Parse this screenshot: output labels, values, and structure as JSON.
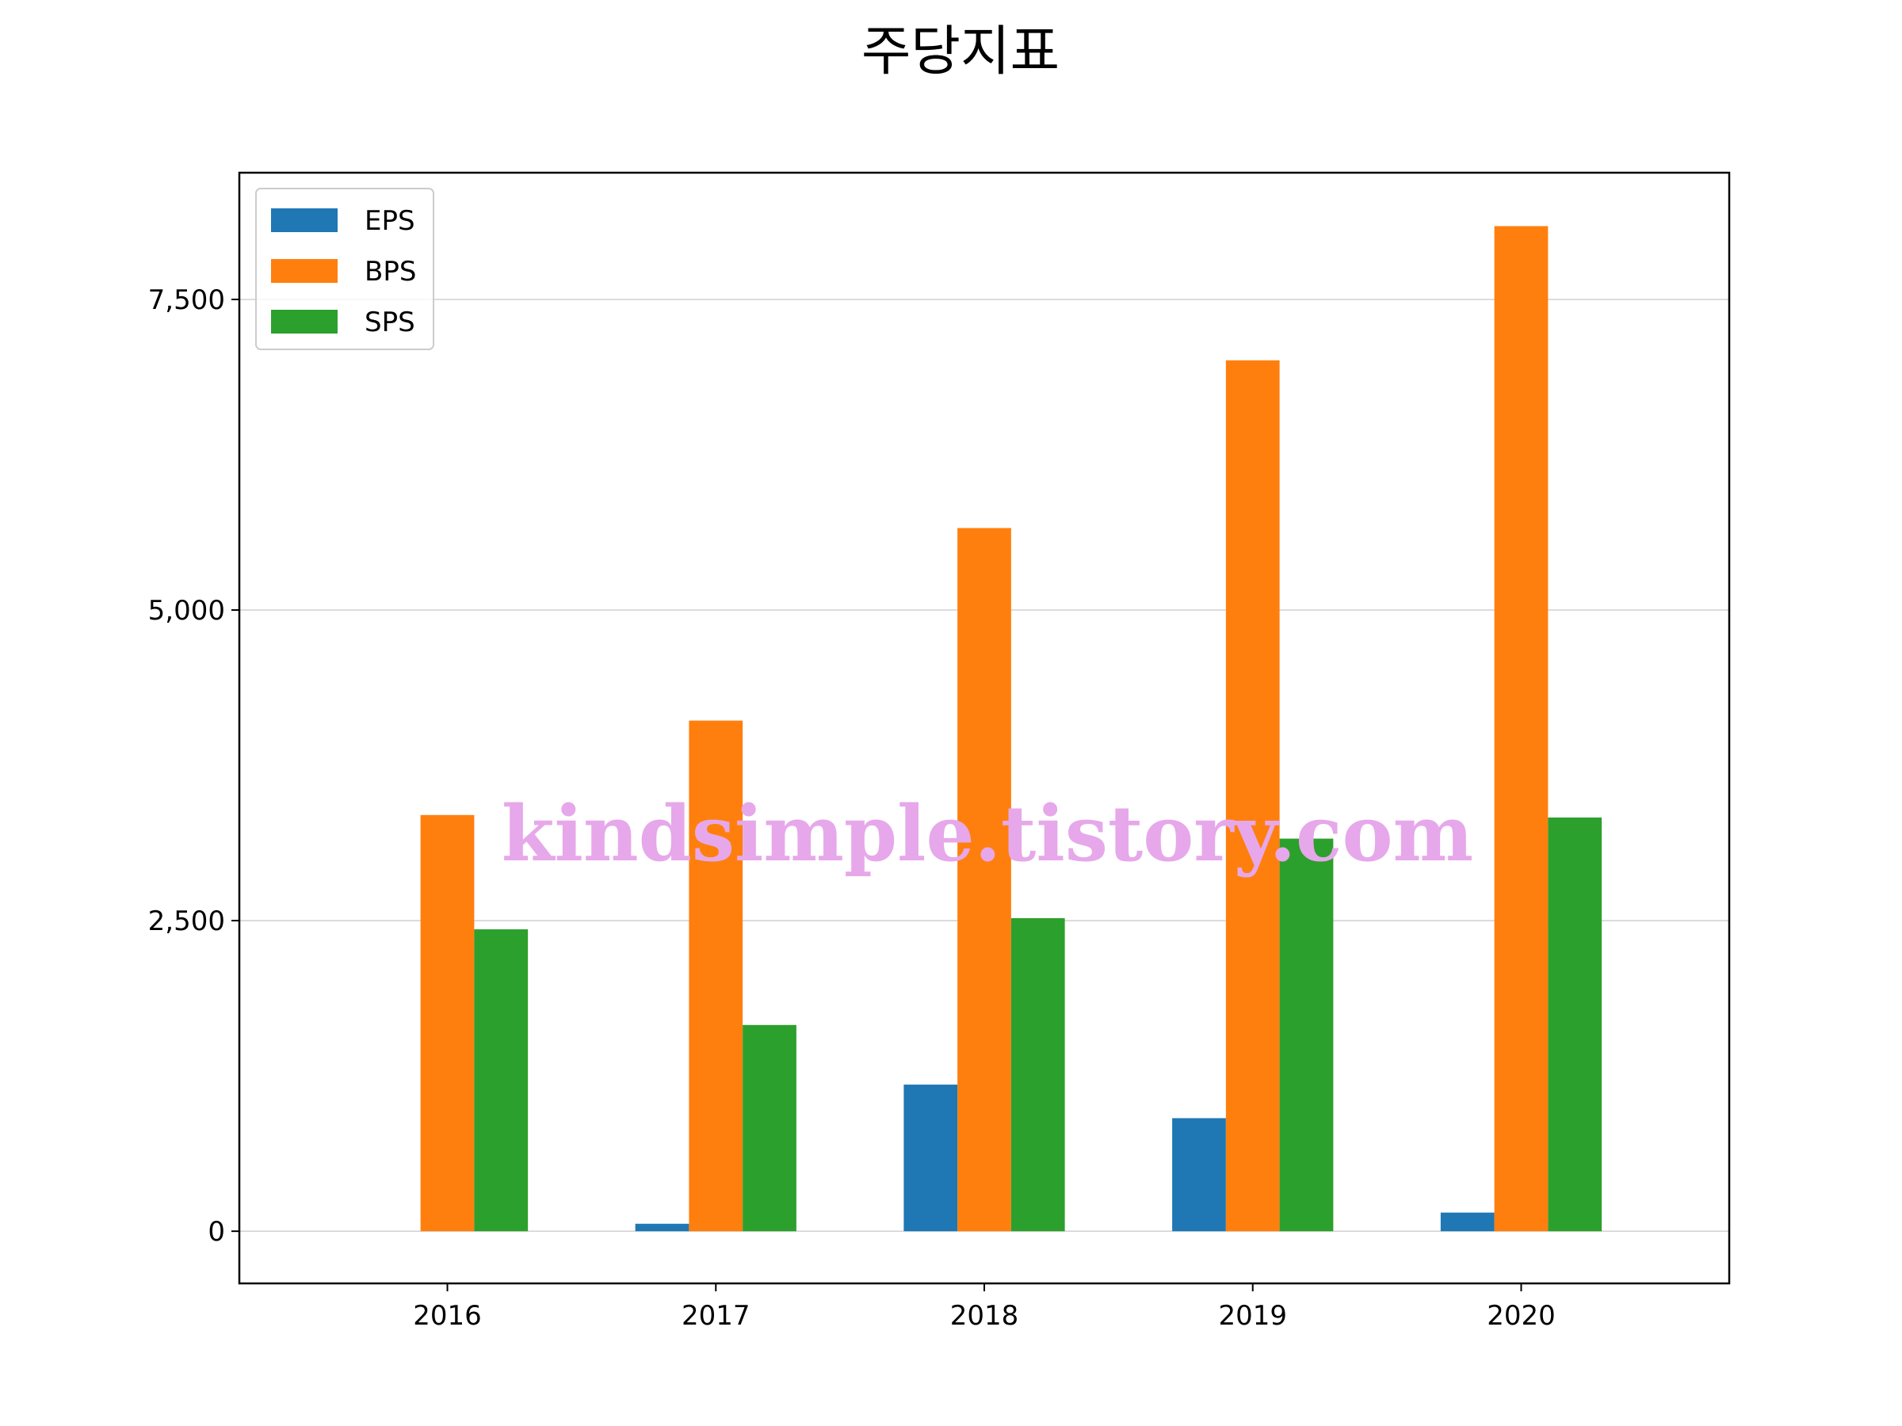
{
  "chart_data": {
    "type": "bar",
    "title": "주당지표",
    "categories": [
      "2016",
      "2017",
      "2018",
      "2019",
      "2020"
    ],
    "series": [
      {
        "name": "EPS",
        "color": "#1f77b4",
        "values": [
          0,
          60,
          1180,
          910,
          150
        ]
      },
      {
        "name": "BPS",
        "color": "#ff7f0e",
        "values": [
          3350,
          4110,
          5660,
          7010,
          8090
        ]
      },
      {
        "name": "SPS",
        "color": "#2ca02c",
        "values": [
          2430,
          1660,
          2520,
          3160,
          3330
        ]
      }
    ],
    "xlabel": "",
    "ylabel": "",
    "ylim": [
      -420,
      8520
    ],
    "yticks": [
      0,
      2500,
      5000,
      7500
    ],
    "ytick_labels": [
      "0",
      "2,500",
      "5,000",
      "7,500"
    ],
    "grid": "horizontal",
    "legend": "top-left"
  },
  "watermark": "kindsimple.tistory.com"
}
